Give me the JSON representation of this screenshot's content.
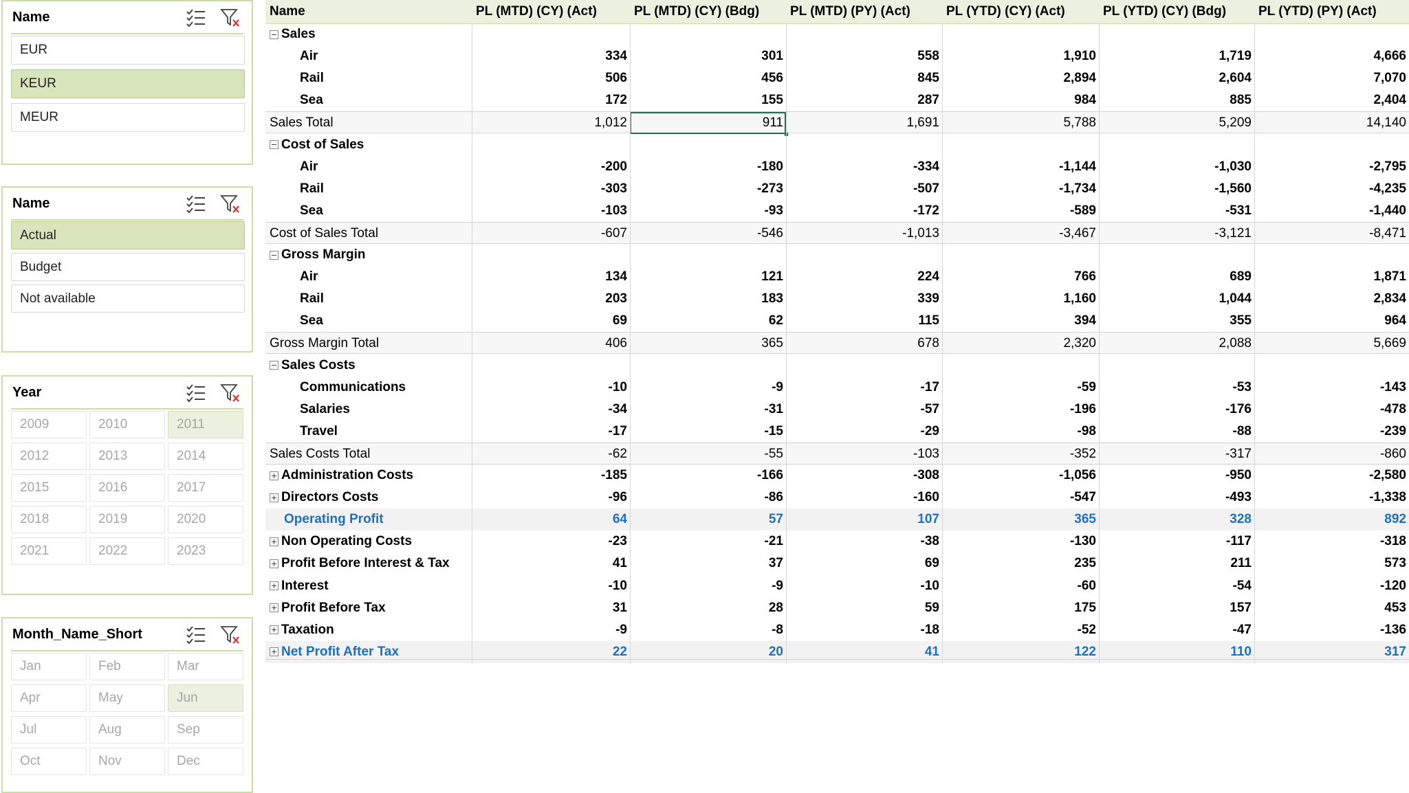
{
  "slicers": [
    {
      "title": "Name",
      "items": [
        {
          "label": "EUR",
          "selected": false
        },
        {
          "label": "KEUR",
          "selected": true
        },
        {
          "label": "MEUR",
          "selected": false
        }
      ]
    },
    {
      "title": "Name",
      "items": [
        {
          "label": "Actual",
          "selected": true
        },
        {
          "label": "Budget",
          "selected": false
        },
        {
          "label": "Not available",
          "selected": false
        }
      ]
    },
    {
      "title": "Year",
      "items": [
        {
          "label": "2009"
        },
        {
          "label": "2010"
        },
        {
          "label": "2011",
          "selected": true
        },
        {
          "label": "2012"
        },
        {
          "label": "2013"
        },
        {
          "label": "2014"
        },
        {
          "label": "2015"
        },
        {
          "label": "2016"
        },
        {
          "label": "2017"
        },
        {
          "label": "2018"
        },
        {
          "label": "2019"
        },
        {
          "label": "2020"
        },
        {
          "label": "2021"
        },
        {
          "label": "2022"
        },
        {
          "label": "2023"
        }
      ]
    },
    {
      "title": "Month_Name_Short",
      "items": [
        {
          "label": "Jan"
        },
        {
          "label": "Feb"
        },
        {
          "label": "Mar"
        },
        {
          "label": "Apr"
        },
        {
          "label": "May"
        },
        {
          "label": "Jun",
          "selected": true
        },
        {
          "label": "Jul"
        },
        {
          "label": "Aug"
        },
        {
          "label": "Sep"
        },
        {
          "label": "Oct"
        },
        {
          "label": "Nov"
        },
        {
          "label": "Dec"
        }
      ]
    }
  ],
  "icons": {
    "multiselect": "multi-select-icon",
    "clear_filter": "clear-filter-icon"
  },
  "colors": {
    "slicer_border": "#c9dcaa",
    "slicer_selected": "#d8e4bc",
    "header_bg": "#ebf1de",
    "highlight_text": "#1f6fbf",
    "active_cell": "#217346"
  },
  "pivot": {
    "columns": [
      "Name",
      "PL (MTD) (CY) (Act)",
      "PL (MTD) (CY) (Bdg)",
      "PL (MTD) (PY) (Act)",
      "PL (YTD) (CY) (Act)",
      "PL (YTD) (CY) (Bdg)",
      "PL (YTD) (PY) (Act)"
    ],
    "rows": [
      {
        "label": "Sales",
        "type": "group",
        "toggle": "minus",
        "values": []
      },
      {
        "label": "Air",
        "type": "item",
        "values": [
          "334",
          "301",
          "558",
          "1,910",
          "1,719",
          "4,666"
        ]
      },
      {
        "label": "Rail",
        "type": "item",
        "values": [
          "506",
          "456",
          "845",
          "2,894",
          "2,604",
          "7,070"
        ]
      },
      {
        "label": "Sea",
        "type": "item",
        "values": [
          "172",
          "155",
          "287",
          "984",
          "885",
          "2,404"
        ]
      },
      {
        "label": "Sales Total",
        "type": "total",
        "values": [
          "1,012",
          "911",
          "1,691",
          "5,788",
          "5,209",
          "14,140"
        ]
      },
      {
        "label": "Cost of Sales",
        "type": "group",
        "toggle": "minus",
        "values": []
      },
      {
        "label": "Air",
        "type": "item",
        "values": [
          "-200",
          "-180",
          "-334",
          "-1,144",
          "-1,030",
          "-2,795"
        ]
      },
      {
        "label": "Rail",
        "type": "item",
        "values": [
          "-303",
          "-273",
          "-507",
          "-1,734",
          "-1,560",
          "-4,235"
        ]
      },
      {
        "label": "Sea",
        "type": "item",
        "values": [
          "-103",
          "-93",
          "-172",
          "-589",
          "-531",
          "-1,440"
        ]
      },
      {
        "label": "Cost of Sales Total",
        "type": "total",
        "values": [
          "-607",
          "-546",
          "-1,013",
          "-3,467",
          "-3,121",
          "-8,471"
        ]
      },
      {
        "label": "Gross Margin",
        "type": "group",
        "toggle": "minus",
        "values": []
      },
      {
        "label": "Air",
        "type": "item",
        "values": [
          "134",
          "121",
          "224",
          "766",
          "689",
          "1,871"
        ]
      },
      {
        "label": "Rail",
        "type": "item",
        "values": [
          "203",
          "183",
          "339",
          "1,160",
          "1,044",
          "2,834"
        ]
      },
      {
        "label": "Sea",
        "type": "item",
        "values": [
          "69",
          "62",
          "115",
          "394",
          "355",
          "964"
        ]
      },
      {
        "label": "Gross Margin Total",
        "type": "total",
        "values": [
          "406",
          "365",
          "678",
          "2,320",
          "2,088",
          "5,669"
        ]
      },
      {
        "label": "Sales Costs",
        "type": "group",
        "toggle": "minus",
        "values": []
      },
      {
        "label": "Communications",
        "type": "item",
        "values": [
          "-10",
          "-9",
          "-17",
          "-59",
          "-53",
          "-143"
        ]
      },
      {
        "label": "Salaries",
        "type": "item",
        "values": [
          "-34",
          "-31",
          "-57",
          "-196",
          "-176",
          "-478"
        ]
      },
      {
        "label": "Travel",
        "type": "item",
        "values": [
          "-17",
          "-15",
          "-29",
          "-98",
          "-88",
          "-239"
        ]
      },
      {
        "label": "Sales Costs Total",
        "type": "total",
        "values": [
          "-62",
          "-55",
          "-103",
          "-352",
          "-317",
          "-860"
        ]
      },
      {
        "label": "Administration Costs",
        "type": "collapsed",
        "toggle": "plus",
        "values": [
          "-185",
          "-166",
          "-308",
          "-1,056",
          "-950",
          "-2,580"
        ]
      },
      {
        "label": "Directors Costs",
        "type": "collapsed",
        "toggle": "plus",
        "values": [
          "-96",
          "-86",
          "-160",
          "-547",
          "-493",
          "-1,338"
        ]
      },
      {
        "label": "Operating Profit",
        "type": "highlight",
        "values": [
          "64",
          "57",
          "107",
          "365",
          "328",
          "892"
        ]
      },
      {
        "label": "Non Operating Costs",
        "type": "collapsed",
        "toggle": "plus",
        "values": [
          "-23",
          "-21",
          "-38",
          "-130",
          "-117",
          "-318"
        ]
      },
      {
        "label": "Profit Before Interest & Tax",
        "type": "collapsed",
        "toggle": "plus",
        "values": [
          "41",
          "37",
          "69",
          "235",
          "211",
          "573"
        ]
      },
      {
        "label": "Interest",
        "type": "collapsed",
        "toggle": "plus",
        "values": [
          "-10",
          "-9",
          "-10",
          "-60",
          "-54",
          "-120"
        ]
      },
      {
        "label": "Profit Before Tax",
        "type": "collapsed",
        "toggle": "plus",
        "values": [
          "31",
          "28",
          "59",
          "175",
          "157",
          "453"
        ]
      },
      {
        "label": "Taxation",
        "type": "collapsed",
        "toggle": "plus",
        "values": [
          "-9",
          "-8",
          "-18",
          "-52",
          "-47",
          "-136"
        ]
      },
      {
        "label": "Net Profit After Tax",
        "type": "highlight",
        "toggle": "plus",
        "values": [
          "22",
          "20",
          "41",
          "122",
          "110",
          "317"
        ]
      }
    ],
    "active_cell": {
      "row": 4,
      "col": 2
    }
  }
}
